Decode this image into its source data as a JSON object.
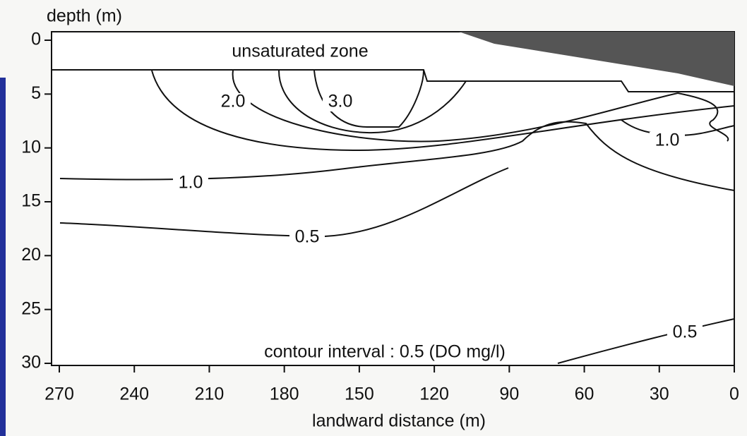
{
  "chart_data": {
    "type": "contour",
    "ylabel": "depth (m)",
    "xlabel": "landward distance (m)",
    "xlim": [
      270,
      0
    ],
    "xticks": [
      270,
      240,
      210,
      180,
      150,
      120,
      90,
      60,
      30,
      0
    ],
    "ylim": [
      0,
      30
    ],
    "yticks": [
      0,
      5,
      10,
      15,
      20,
      25,
      30
    ],
    "annotations": [
      "unsaturated zone",
      "contour interval : 0.5 (DO mg/l)"
    ],
    "contours": {
      "values": [
        2,
        3,
        1,
        1,
        0.5,
        0.5
      ],
      "value_labels": [
        "2.0",
        "3.0",
        "1.0",
        "1.0",
        "0.5",
        "0.5"
      ]
    },
    "color": "#111111"
  }
}
